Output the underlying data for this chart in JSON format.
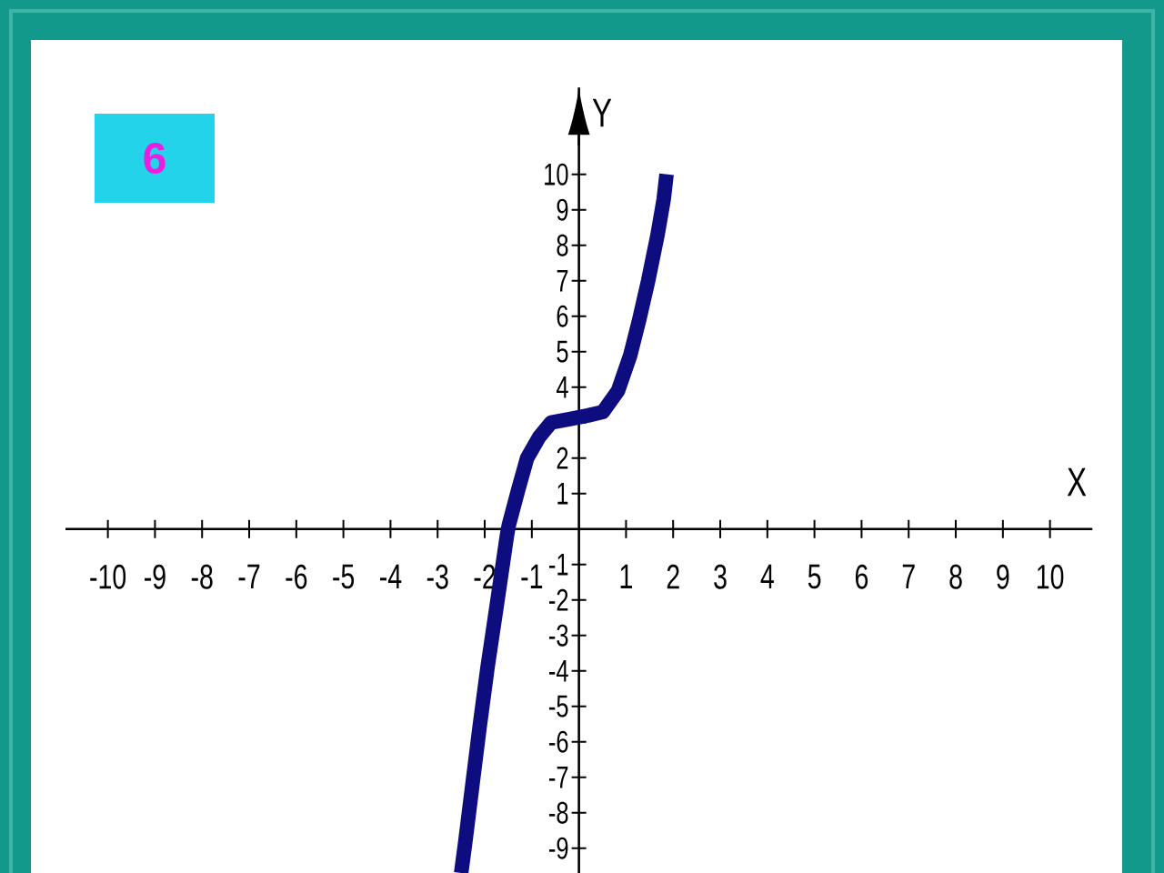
{
  "chart_data": {
    "type": "line",
    "annotations": [
      "6"
    ],
    "xlabel": "X",
    "ylabel": "Y",
    "xlim": [
      -10.9,
      10.9
    ],
    "ylim": [
      -9.7,
      12.45
    ],
    "xticks": [
      -10,
      -9,
      -8,
      -7,
      -6,
      -5,
      -4,
      -3,
      -2,
      -1,
      1,
      2,
      3,
      4,
      5,
      6,
      7,
      8,
      9,
      10
    ],
    "yticks": [
      -9,
      -8,
      -7,
      -6,
      -5,
      -4,
      -3,
      -2,
      -1,
      1,
      2,
      {
        "value": 3,
        "label": null
      },
      4,
      5,
      6,
      7,
      8,
      9,
      10
    ],
    "line_style": "solid",
    "series": [
      {
        "color": "#0d0d80",
        "x": [
          -2.5,
          -2.41,
          -2.27,
          -2.11,
          -1.94,
          -1.75,
          -1.53,
          -1.49,
          -1.29,
          -1.1,
          -0.84,
          -0.59,
          -0.2,
          0.19,
          0.51,
          0.83,
          1.09,
          1.28,
          1.47,
          1.67,
          1.8,
          1.86
        ],
        "values": [
          -9.7,
          -8.8,
          -7.3,
          -5.6,
          -3.9,
          -2.2,
          -0.2,
          0.1,
          1.1,
          2.0,
          2.6,
          3.0,
          3.1,
          3.2,
          3.3,
          3.9,
          4.9,
          5.9,
          7.0,
          8.3,
          9.3,
          10
        ]
      }
    ]
  }
}
